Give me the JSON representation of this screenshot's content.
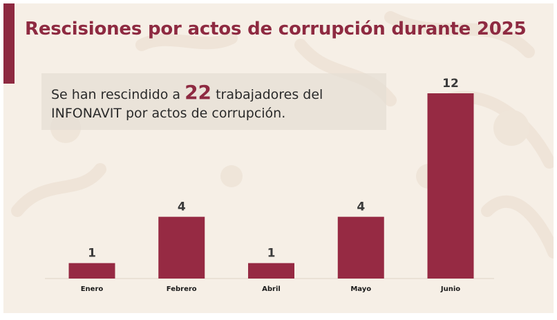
{
  "slide": {
    "title": "Rescisiones por actos de corrupción durante 2025",
    "callout": {
      "text_before": "Se han rescindido a ",
      "highlight_number": "22",
      "text_after_line1": " trabajadores del",
      "text_line2": "INFONAVIT por actos de corrupción."
    }
  },
  "colors": {
    "accent": "#8e2a41",
    "bar": "#962a43",
    "background": "#f6efe6"
  },
  "chart_data": {
    "type": "bar",
    "categories": [
      "Enero",
      "Febrero",
      "Abril",
      "Mayo",
      "Junio"
    ],
    "values": [
      1,
      4,
      1,
      4,
      12
    ],
    "data_labels": [
      "1",
      "4",
      "1",
      "4",
      "12"
    ],
    "title": "",
    "xlabel": "",
    "ylabel": "",
    "ylim": [
      0,
      12
    ],
    "grid": false,
    "legend": "none"
  }
}
